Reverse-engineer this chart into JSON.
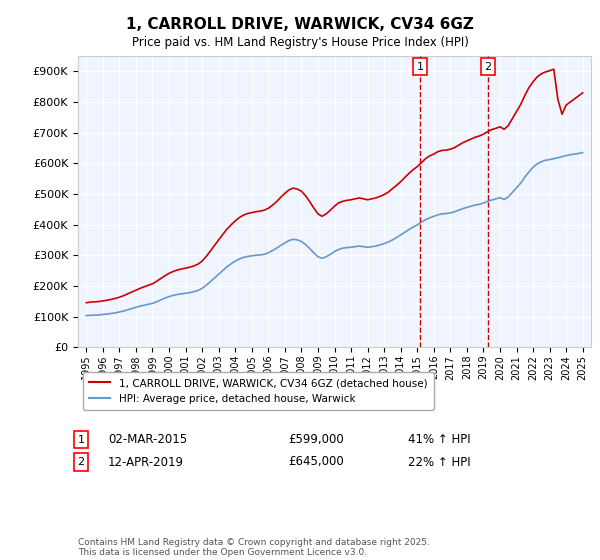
{
  "title": "1, CARROLL DRIVE, WARWICK, CV34 6GZ",
  "subtitle": "Price paid vs. HM Land Registry's House Price Index (HPI)",
  "ylim": [
    0,
    950000
  ],
  "yticks": [
    0,
    100000,
    200000,
    300000,
    400000,
    500000,
    600000,
    700000,
    800000,
    900000
  ],
  "xlabel_years": [
    "1995",
    "1996",
    "1997",
    "1998",
    "1999",
    "2000",
    "2001",
    "2002",
    "2003",
    "2004",
    "2005",
    "2006",
    "2007",
    "2008",
    "2009",
    "2010",
    "2011",
    "2012",
    "2013",
    "2014",
    "2015",
    "2016",
    "2017",
    "2018",
    "2019",
    "2020",
    "2021",
    "2022",
    "2023",
    "2024",
    "2025"
  ],
  "legend_house": "1, CARROLL DRIVE, WARWICK, CV34 6GZ (detached house)",
  "legend_hpi": "HPI: Average price, detached house, Warwick",
  "annotation1_label": "1",
  "annotation1_date": "02-MAR-2015",
  "annotation1_price": "£599,000",
  "annotation1_hpi": "41% ↑ HPI",
  "annotation1_year": 2015.17,
  "annotation1_value": 599000,
  "annotation2_label": "2",
  "annotation2_date": "12-APR-2019",
  "annotation2_price": "£645,000",
  "annotation2_hpi": "22% ↑ HPI",
  "annotation2_year": 2019.28,
  "annotation2_value": 645000,
  "house_color": "#cc0000",
  "hpi_color": "#6699cc",
  "vline_color": "#cc0000",
  "background_color": "#ffffff",
  "plot_bg_color": "#f0f4ff",
  "footer_text": "Contains HM Land Registry data © Crown copyright and database right 2025.\nThis data is licensed under the Open Government Licence v3.0.",
  "hpi_data": {
    "years": [
      1995.0,
      1995.25,
      1995.5,
      1995.75,
      1996.0,
      1996.25,
      1996.5,
      1996.75,
      1997.0,
      1997.25,
      1997.5,
      1997.75,
      1998.0,
      1998.25,
      1998.5,
      1998.75,
      1999.0,
      1999.25,
      1999.5,
      1999.75,
      2000.0,
      2000.25,
      2000.5,
      2000.75,
      2001.0,
      2001.25,
      2001.5,
      2001.75,
      2002.0,
      2002.25,
      2002.5,
      2002.75,
      2003.0,
      2003.25,
      2003.5,
      2003.75,
      2004.0,
      2004.25,
      2004.5,
      2004.75,
      2005.0,
      2005.25,
      2005.5,
      2005.75,
      2006.0,
      2006.25,
      2006.5,
      2006.75,
      2007.0,
      2007.25,
      2007.5,
      2007.75,
      2008.0,
      2008.25,
      2008.5,
      2008.75,
      2009.0,
      2009.25,
      2009.5,
      2009.75,
      2010.0,
      2010.25,
      2010.5,
      2010.75,
      2011.0,
      2011.25,
      2011.5,
      2011.75,
      2012.0,
      2012.25,
      2012.5,
      2012.75,
      2013.0,
      2013.25,
      2013.5,
      2013.75,
      2014.0,
      2014.25,
      2014.5,
      2014.75,
      2015.0,
      2015.25,
      2015.5,
      2015.75,
      2016.0,
      2016.25,
      2016.5,
      2016.75,
      2017.0,
      2017.25,
      2017.5,
      2017.75,
      2018.0,
      2018.25,
      2018.5,
      2018.75,
      2019.0,
      2019.25,
      2019.5,
      2019.75,
      2020.0,
      2020.25,
      2020.5,
      2020.75,
      2021.0,
      2021.25,
      2021.5,
      2021.75,
      2022.0,
      2022.25,
      2022.5,
      2022.75,
      2023.0,
      2023.25,
      2023.5,
      2023.75,
      2024.0,
      2024.25,
      2024.5,
      2024.75,
      2025.0
    ],
    "values": [
      103000,
      104000,
      104500,
      105000,
      107000,
      108000,
      110000,
      112000,
      115000,
      118000,
      122000,
      126000,
      130000,
      134000,
      137000,
      140000,
      143000,
      148000,
      154000,
      160000,
      165000,
      169000,
      172000,
      174000,
      176000,
      178000,
      181000,
      185000,
      192000,
      202000,
      214000,
      226000,
      238000,
      250000,
      262000,
      272000,
      281000,
      288000,
      293000,
      296000,
      298000,
      300000,
      301000,
      303000,
      308000,
      315000,
      323000,
      332000,
      340000,
      348000,
      352000,
      350000,
      345000,
      335000,
      322000,
      308000,
      295000,
      290000,
      295000,
      303000,
      312000,
      319000,
      323000,
      325000,
      326000,
      328000,
      330000,
      328000,
      326000,
      328000,
      330000,
      334000,
      338000,
      343000,
      350000,
      358000,
      366000,
      375000,
      384000,
      392000,
      399000,
      408000,
      416000,
      422000,
      427000,
      432000,
      435000,
      436000,
      438000,
      442000,
      447000,
      452000,
      456000,
      460000,
      464000,
      466000,
      470000,
      476000,
      480000,
      484000,
      488000,
      482000,
      490000,
      505000,
      520000,
      535000,
      555000,
      572000,
      587000,
      598000,
      605000,
      610000,
      612000,
      615000,
      618000,
      622000,
      625000,
      628000,
      630000,
      632000,
      635000
    ]
  },
  "house_data": {
    "years": [
      1995.0,
      1995.25,
      1995.5,
      1995.75,
      1996.0,
      1996.25,
      1996.5,
      1996.75,
      1997.0,
      1997.25,
      1997.5,
      1997.75,
      1998.0,
      1998.25,
      1998.5,
      1998.75,
      1999.0,
      1999.25,
      1999.5,
      1999.75,
      2000.0,
      2000.25,
      2000.5,
      2000.75,
      2001.0,
      2001.25,
      2001.5,
      2001.75,
      2002.0,
      2002.25,
      2002.5,
      2002.75,
      2003.0,
      2003.25,
      2003.5,
      2003.75,
      2004.0,
      2004.25,
      2004.5,
      2004.75,
      2005.0,
      2005.25,
      2005.5,
      2005.75,
      2006.0,
      2006.25,
      2006.5,
      2006.75,
      2007.0,
      2007.25,
      2007.5,
      2007.75,
      2008.0,
      2008.25,
      2008.5,
      2008.75,
      2009.0,
      2009.25,
      2009.5,
      2009.75,
      2010.0,
      2010.25,
      2010.5,
      2010.75,
      2011.0,
      2011.25,
      2011.5,
      2011.75,
      2012.0,
      2012.25,
      2012.5,
      2012.75,
      2013.0,
      2013.25,
      2013.5,
      2013.75,
      2014.0,
      2014.25,
      2014.5,
      2014.75,
      2015.0,
      2015.25,
      2015.5,
      2015.75,
      2016.0,
      2016.25,
      2016.5,
      2016.75,
      2017.0,
      2017.25,
      2017.5,
      2017.75,
      2018.0,
      2018.25,
      2018.5,
      2018.75,
      2019.0,
      2019.25,
      2019.5,
      2019.75,
      2020.0,
      2020.25,
      2020.5,
      2020.75,
      2021.0,
      2021.25,
      2021.5,
      2021.75,
      2022.0,
      2022.25,
      2022.5,
      2022.75,
      2023.0,
      2023.25,
      2023.5,
      2023.75,
      2024.0,
      2024.25,
      2024.5,
      2024.75,
      2025.0
    ],
    "values": [
      145000,
      147000,
      148000,
      149000,
      151000,
      153000,
      156000,
      159000,
      163000,
      168000,
      174000,
      180000,
      186000,
      192000,
      197000,
      202000,
      207000,
      215000,
      224000,
      233000,
      241000,
      247000,
      252000,
      255000,
      258000,
      261000,
      265000,
      271000,
      281000,
      296000,
      314000,
      332000,
      350000,
      368000,
      385000,
      399000,
      412000,
      423000,
      431000,
      436000,
      439000,
      442000,
      444000,
      447000,
      453000,
      463000,
      475000,
      489000,
      502000,
      513000,
      519000,
      516000,
      509000,
      494000,
      475000,
      454000,
      435000,
      427000,
      435000,
      447000,
      460000,
      471000,
      476000,
      479000,
      481000,
      484000,
      487000,
      484000,
      481000,
      484000,
      487000,
      492000,
      498000,
      506000,
      517000,
      528000,
      540000,
      554000,
      567000,
      579000,
      589000,
      602000,
      615000,
      624000,
      630000,
      638000,
      642000,
      643000,
      646000,
      651000,
      659000,
      667000,
      673000,
      679000,
      685000,
      689000,
      695000,
      703000,
      710000,
      714000,
      719000,
      711000,
      723000,
      746000,
      769000,
      792000,
      821000,
      847000,
      866000,
      882000,
      892000,
      898000,
      902000,
      907000,
      808000,
      760000,
      790000,
      800000,
      810000,
      820000,
      830000
    ]
  }
}
